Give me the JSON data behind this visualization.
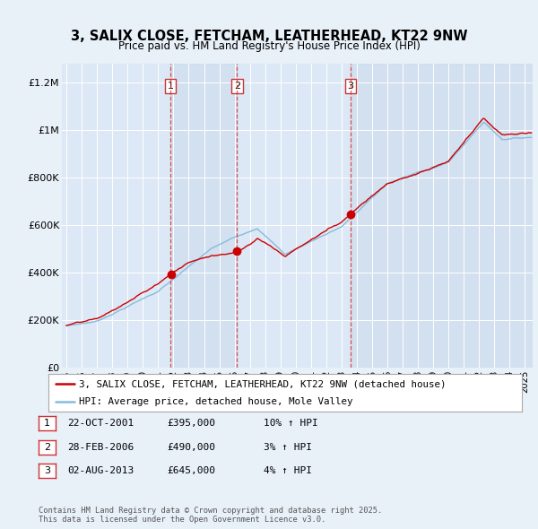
{
  "title": "3, SALIX CLOSE, FETCHAM, LEATHERHEAD, KT22 9NW",
  "subtitle": "Price paid vs. HM Land Registry's House Price Index (HPI)",
  "background_color": "#e8f0f8",
  "plot_bg_color": "#dce8f5",
  "band_color": "#ccdcee",
  "ylabel_ticks": [
    "£0",
    "£200K",
    "£400K",
    "£600K",
    "£800K",
    "£1M",
    "£1.2M"
  ],
  "ytick_vals": [
    0,
    200000,
    400000,
    600000,
    800000,
    1000000,
    1200000
  ],
  "ylim": [
    0,
    1280000
  ],
  "xlim_start": 1994.7,
  "xlim_end": 2025.5,
  "sale_dates": [
    2001.81,
    2006.16,
    2013.58
  ],
  "sale_labels": [
    "1",
    "2",
    "3"
  ],
  "sale_prices": [
    395000,
    490000,
    645000
  ],
  "sale_info": [
    {
      "label": "1",
      "date": "22-OCT-2001",
      "price": "£395,000",
      "hpi": "10% ↑ HPI"
    },
    {
      "label": "2",
      "date": "28-FEB-2006",
      "price": "£490,000",
      "hpi": "3% ↑ HPI"
    },
    {
      "label": "3",
      "date": "02-AUG-2013",
      "price": "£645,000",
      "hpi": "4% ↑ HPI"
    }
  ],
  "legend_house": "3, SALIX CLOSE, FETCHAM, LEATHERHEAD, KT22 9NW (detached house)",
  "legend_hpi": "HPI: Average price, detached house, Mole Valley",
  "footnote": "Contains HM Land Registry data © Crown copyright and database right 2025.\nThis data is licensed under the Open Government Licence v3.0.",
  "red_color": "#cc0000",
  "blue_color": "#88bbdd",
  "grid_color": "#ffffff",
  "vline_color": "#dd3333"
}
